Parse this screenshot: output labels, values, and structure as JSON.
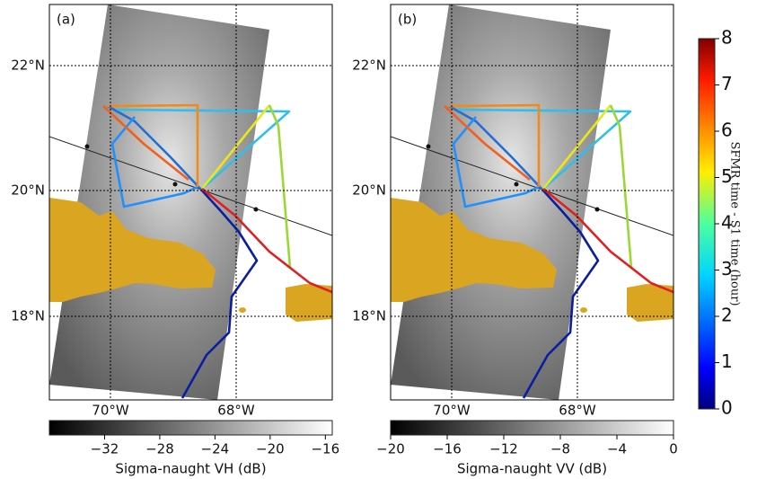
{
  "panels": [
    {
      "label": "(a)",
      "lat_labels": [
        "22°N",
        "20°N",
        "18°N"
      ],
      "lon_labels": [
        "70°W",
        "68°W"
      ],
      "colorbar": {
        "label": "Sigma-naught VH (dB)",
        "lim": [
          -36,
          -15.5
        ],
        "ticks": [
          {
            "value": -32,
            "label": "−32"
          },
          {
            "value": -28,
            "label": "−28"
          },
          {
            "value": -24,
            "label": "−24"
          },
          {
            "value": -20,
            "label": "−20"
          },
          {
            "value": -16,
            "label": "−16"
          }
        ]
      }
    },
    {
      "label": "(b)",
      "lat_labels": [
        "22°N",
        "20°N",
        "18°N"
      ],
      "lon_labels": [
        "70°W",
        "68°W"
      ],
      "colorbar": {
        "label": "Sigma-naught VV (dB)",
        "lim": [
          -20,
          0
        ],
        "ticks": [
          {
            "value": -20,
            "label": "−20"
          },
          {
            "value": -16,
            "label": "−16"
          },
          {
            "value": -12,
            "label": "−12"
          },
          {
            "value": -8,
            "label": "−8"
          },
          {
            "value": -4,
            "label": "−4"
          },
          0
        ]
      }
    }
  ],
  "time_colorbar": {
    "label": "SFMR time - S1 time (hour)",
    "lim": [
      0,
      8
    ],
    "ticks": [
      0,
      1,
      2,
      3,
      4,
      5,
      6,
      7,
      8
    ]
  }
}
